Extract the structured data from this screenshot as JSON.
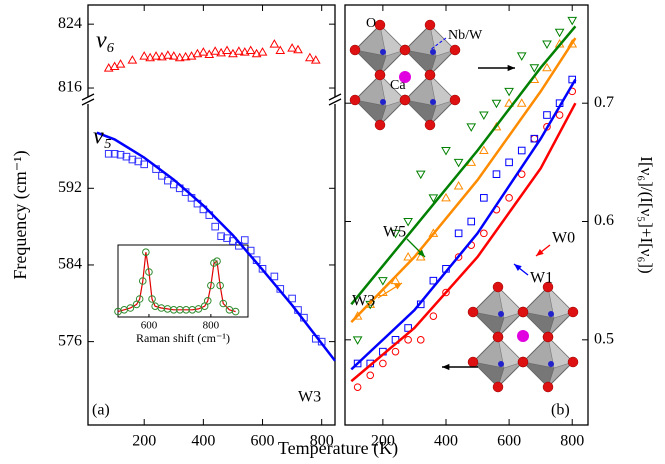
{
  "chart_data": [
    {
      "type": "scatter",
      "ylabel": "Frequency (cm⁻¹)",
      "xlim": [
        10,
        845
      ],
      "ylim": [
        814.5,
        826.4
      ],
      "yticks": [
        816,
        824
      ],
      "series": [
        {
          "name": "ν₆",
          "color": "#ff0000",
          "marker": "triangle",
          "x": [
            80,
            100,
            120,
            160,
            200,
            220,
            240,
            260,
            280,
            300,
            320,
            340,
            360,
            380,
            400,
            420,
            440,
            460,
            480,
            500,
            520,
            540,
            560,
            580,
            600,
            640,
            660,
            700,
            720,
            760,
            780
          ],
          "values": [
            818.5,
            818.7,
            819.0,
            819.5,
            820.0,
            819.8,
            820.0,
            819.9,
            820.1,
            820.0,
            819.8,
            819.9,
            820.0,
            820.3,
            820.5,
            820.2,
            820.6,
            820.4,
            820.7,
            820.3,
            820.6,
            820.5,
            820.7,
            820.3,
            820.5,
            821.5,
            820.7,
            821.0,
            820.8,
            819.8,
            819.5
          ]
        }
      ]
    },
    {
      "type": "scatter",
      "xlabel": "Temperature (K)",
      "panel_label": "(a)",
      "sample": "W3",
      "xlim": [
        10,
        845
      ],
      "xticks": [
        200,
        400,
        600,
        800
      ],
      "ylim": [
        567.3,
        600.9
      ],
      "yticks": [
        576,
        584,
        592
      ],
      "series": [
        {
          "name": "ν₅",
          "color": "#3333ff",
          "marker": "square",
          "x": [
            80,
            100,
            120,
            140,
            160,
            180,
            200,
            240,
            260,
            280,
            300,
            320,
            340,
            360,
            380,
            400,
            420,
            440,
            460,
            480,
            500,
            520,
            540,
            560,
            580,
            600,
            640,
            660,
            700,
            720,
            740,
            780,
            800
          ],
          "values": [
            595.6,
            595.6,
            595.5,
            595.3,
            595.0,
            594.8,
            594.5,
            594.0,
            593.3,
            592.8,
            592.4,
            592.0,
            591.6,
            591.0,
            590.4,
            589.8,
            589.2,
            588.0,
            587.0,
            586.8,
            586.5,
            586.0,
            586.6,
            585.5,
            584.5,
            583.6,
            582.8,
            581.5,
            580.5,
            579.3,
            578.5,
            576.3,
            576.0
          ]
        },
        {
          "color": "#0000ff",
          "x": [
            40,
            100,
            200,
            300,
            400,
            500,
            600,
            700,
            800,
            845
          ],
          "values": [
            597.8,
            597.1,
            595.2,
            592.9,
            590.2,
            587.1,
            583.5,
            579.8,
            575.8,
            574.0
          ]
        }
      ]
    },
    {
      "type": "line",
      "xlabel": "Raman shift (cm⁻¹)",
      "xlim": [
        500,
        920
      ],
      "xticks": [
        600,
        800
      ],
      "ylim": [
        0.1,
        0.9
      ],
      "series": [
        {
          "color": "#2e8b2e",
          "marker": "circle",
          "line_color": "#e00000",
          "x": [
            500,
            520,
            540,
            560,
            570,
            580,
            590,
            600,
            610,
            620,
            640,
            660,
            680,
            700,
            720,
            740,
            760,
            780,
            790,
            800,
            810,
            820,
            830,
            840,
            860,
            880
          ],
          "values": [
            0.16,
            0.18,
            0.2,
            0.24,
            0.3,
            0.5,
            0.82,
            0.6,
            0.3,
            0.22,
            0.2,
            0.19,
            0.18,
            0.18,
            0.18,
            0.18,
            0.19,
            0.22,
            0.28,
            0.45,
            0.7,
            0.72,
            0.45,
            0.25,
            0.18,
            0.16
          ]
        }
      ]
    },
    {
      "type": "scatter",
      "ylabel": "I[ν₆]/(I[ν₅]+I[ν₆])",
      "panel_label": "(b)",
      "xlim": [
        80,
        850
      ],
      "xticks": [
        200,
        400,
        600,
        800
      ],
      "ylim": [
        0.428,
        0.783
      ],
      "yticks": [
        0.5,
        0.6,
        0.7
      ],
      "annotations": [
        {
          "text": "O",
          "color": "#e00000"
        },
        {
          "text": "Nb/W",
          "color": "#0000ff"
        },
        {
          "text": "Ca",
          "color": "#e000e0"
        }
      ],
      "series": [
        {
          "name": "W0",
          "color": "#ff0000",
          "marker": "circle",
          "x": [
            120,
            160,
            200,
            240,
            280,
            320,
            360,
            400,
            440,
            480,
            520,
            560,
            600,
            640,
            680,
            720,
            760,
            800
          ],
          "values": [
            0.46,
            0.47,
            0.48,
            0.49,
            0.5,
            0.5,
            0.52,
            0.54,
            0.57,
            0.58,
            0.59,
            0.61,
            0.62,
            0.64,
            0.67,
            0.68,
            0.69,
            0.71
          ]
        },
        {
          "name": "W1",
          "color": "#0000ff",
          "marker": "square",
          "x": [
            120,
            160,
            200,
            240,
            280,
            320,
            360,
            400,
            440,
            480,
            520,
            560,
            600,
            640,
            680,
            720,
            760,
            800
          ],
          "values": [
            0.48,
            0.48,
            0.49,
            0.5,
            0.51,
            0.53,
            0.55,
            0.56,
            0.59,
            0.6,
            0.62,
            0.64,
            0.65,
            0.66,
            0.67,
            0.69,
            0.7,
            0.72
          ]
        },
        {
          "name": "W3",
          "color": "#ff8c00",
          "marker": "triangle",
          "x": [
            120,
            160,
            200,
            240,
            280,
            320,
            360,
            400,
            440,
            480,
            520,
            560,
            600,
            640,
            680,
            720,
            760,
            800
          ],
          "values": [
            0.52,
            0.53,
            0.54,
            0.55,
            0.57,
            0.57,
            0.59,
            0.62,
            0.63,
            0.65,
            0.66,
            0.68,
            0.7,
            0.7,
            0.72,
            0.73,
            0.75,
            0.75
          ]
        },
        {
          "name": "W5",
          "color": "#008000",
          "marker": "invtriangle",
          "x": [
            120,
            160,
            200,
            240,
            280,
            320,
            360,
            400,
            440,
            480,
            520,
            560,
            600,
            640,
            680,
            720,
            760,
            800
          ],
          "values": [
            0.5,
            0.53,
            0.55,
            0.59,
            0.6,
            0.64,
            0.62,
            0.66,
            0.65,
            0.68,
            0.69,
            0.7,
            0.71,
            0.74,
            0.73,
            0.75,
            0.76,
            0.77
          ]
        },
        {
          "color": "#ff0000",
          "x": [
            100,
            300,
            500,
            700,
            810
          ],
          "values": [
            0.465,
            0.51,
            0.57,
            0.645,
            0.7
          ]
        },
        {
          "color": "#0000ff",
          "x": [
            100,
            300,
            500,
            700,
            810
          ],
          "values": [
            0.475,
            0.525,
            0.59,
            0.67,
            0.72
          ]
        },
        {
          "color": "#ff8c00",
          "x": [
            100,
            300,
            500,
            700,
            810
          ],
          "values": [
            0.515,
            0.57,
            0.635,
            0.71,
            0.755
          ]
        },
        {
          "color": "#008000",
          "x": [
            100,
            300,
            500,
            700,
            810
          ],
          "values": [
            0.53,
            0.595,
            0.66,
            0.73,
            0.765
          ]
        }
      ]
    }
  ]
}
